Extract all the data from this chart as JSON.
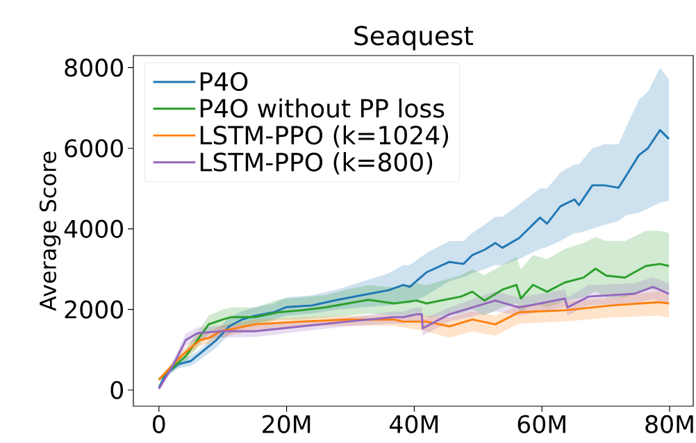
{
  "chart_data": {
    "type": "line",
    "title": "Seaquest",
    "ylabel": "Average Score",
    "xlim": [
      -4,
      83.7
    ],
    "ylim": [
      -400,
      8300
    ],
    "xticks": [
      {
        "value": 0,
        "label": "0"
      },
      {
        "value": 20,
        "label": "20M"
      },
      {
        "value": 40,
        "label": "40M"
      },
      {
        "value": 60,
        "label": "60M"
      },
      {
        "value": 80,
        "label": "80M"
      }
    ],
    "yticks": [
      0,
      2000,
      4000,
      6000,
      8000
    ],
    "grid": false,
    "legend": "top left",
    "series": [
      {
        "name": "P4O",
        "color": "#1f77b4",
        "x": [
          0,
          1,
          3,
          5,
          7,
          9,
          11,
          13,
          15,
          18,
          20,
          24,
          28,
          32,
          36,
          38.3,
          39.3,
          41.9,
          45.5,
          47.7,
          49.1,
          51,
          52.7,
          53.8,
          56.4,
          59.7,
          60.8,
          62.9,
          65.1,
          65.8,
          67.9,
          69.8,
          72,
          73.4,
          75.2,
          76.6,
          78.5,
          79.9
        ],
        "values": [
          60,
          380,
          640,
          720,
          980,
          1240,
          1580,
          1750,
          1840,
          1930,
          2060,
          2100,
          2240,
          2360,
          2480,
          2610,
          2560,
          2920,
          3180,
          3130,
          3350,
          3480,
          3650,
          3530,
          3770,
          4280,
          4130,
          4560,
          4730,
          4590,
          5080,
          5080,
          5020,
          5370,
          5830,
          6000,
          6450,
          6230
        ],
        "upper": [
          100,
          450,
          750,
          850,
          1080,
          1450,
          1800,
          1950,
          2050,
          2150,
          2300,
          2350,
          2500,
          2700,
          2900,
          3100,
          3100,
          3400,
          3700,
          3700,
          3900,
          4100,
          4300,
          4300,
          4600,
          5000,
          5000,
          5400,
          5600,
          5600,
          6000,
          6100,
          6100,
          6600,
          7200,
          7400,
          8000,
          7700
        ],
        "lower": [
          20,
          300,
          540,
          600,
          820,
          1050,
          1380,
          1550,
          1650,
          1750,
          1850,
          1900,
          2000,
          2050,
          2100,
          2150,
          2150,
          2350,
          2700,
          2800,
          2900,
          3000,
          3100,
          3100,
          3250,
          3500,
          3550,
          3700,
          3900,
          3900,
          4000,
          4100,
          4200,
          4350,
          4400,
          4500,
          4650,
          4700
        ]
      },
      {
        "name": "P4O without PP loss",
        "color": "#2ca02c",
        "x": [
          0,
          4.2,
          7.8,
          10,
          11.4,
          15.1,
          18.7,
          22.3,
          26,
          29.6,
          32.8,
          36.8,
          40.4,
          41.9,
          47.3,
          49.1,
          51,
          53.8,
          56,
          56.7,
          58.6,
          60.8,
          63.6,
          66.5,
          68.4,
          70.1,
          73,
          76.3,
          78.5,
          79.9
        ],
        "values": [
          260,
          840,
          1630,
          1750,
          1810,
          1810,
          1930,
          1980,
          2050,
          2150,
          2240,
          2150,
          2220,
          2150,
          2320,
          2440,
          2220,
          2490,
          2610,
          2270,
          2610,
          2440,
          2670,
          2790,
          3010,
          2840,
          2790,
          3080,
          3130,
          3080
        ],
        "upper": [
          300,
          1000,
          1850,
          2000,
          2050,
          2050,
          2250,
          2300,
          2350,
          2500,
          2600,
          2550,
          2650,
          2600,
          2850,
          3000,
          2850,
          3100,
          3300,
          3000,
          3350,
          3250,
          3500,
          3650,
          3800,
          3700,
          3700,
          3950,
          3950,
          3900
        ],
        "lower": [
          220,
          700,
          1400,
          1550,
          1600,
          1600,
          1750,
          1750,
          1800,
          1850,
          1900,
          1850,
          1850,
          1800,
          1900,
          2000,
          1850,
          2050,
          2150,
          1900,
          2150,
          2050,
          2200,
          2300,
          2450,
          2300,
          2300,
          2500,
          2500,
          2450
        ]
      },
      {
        "name": "LSTM-PPO (k=1024)",
        "color": "#ff7f0e",
        "x": [
          0,
          3.5,
          6.4,
          7.8,
          9.7,
          15.1,
          22.3,
          29.6,
          36.8,
          38.3,
          40.4,
          41.9,
          45.5,
          49.1,
          52.7,
          56.4,
          63.6,
          70.9,
          78.2,
          79.9
        ],
        "values": [
          260,
          840,
          1240,
          1290,
          1460,
          1630,
          1700,
          1750,
          1750,
          1700,
          1700,
          1700,
          1580,
          1750,
          1630,
          1930,
          1980,
          2100,
          2180,
          2150
        ],
        "upper": [
          300,
          950,
          1400,
          1450,
          1600,
          1750,
          1800,
          1850,
          1850,
          1800,
          1850,
          1850,
          1800,
          1950,
          1850,
          2100,
          2200,
          2300,
          2450,
          2400
        ],
        "lower": [
          220,
          730,
          1100,
          1150,
          1300,
          1500,
          1580,
          1600,
          1600,
          1550,
          1500,
          1450,
          1300,
          1450,
          1350,
          1650,
          1700,
          1800,
          1850,
          1800
        ]
      },
      {
        "name": "LSTM-PPO (k=800)",
        "color": "#9467bd",
        "x": [
          0,
          2.4,
          4.2,
          6,
          9.7,
          15.1,
          22.3,
          29.6,
          36.8,
          38.3,
          40.4,
          41.2,
          41.3,
          45.5,
          52.7,
          56.4,
          63.6,
          64,
          67.3,
          74.5,
          77.4,
          79.9
        ],
        "values": [
          30,
          670,
          1240,
          1410,
          1460,
          1460,
          1580,
          1700,
          1810,
          1810,
          1880,
          1880,
          1530,
          1880,
          2220,
          2050,
          2270,
          2050,
          2320,
          2390,
          2560,
          2390
        ],
        "upper": [
          60,
          800,
          1400,
          1550,
          1600,
          1600,
          1700,
          1800,
          1950,
          1950,
          2050,
          2050,
          1750,
          2050,
          2450,
          2300,
          2500,
          2300,
          2600,
          2650,
          2800,
          2650
        ],
        "lower": [
          10,
          550,
          1100,
          1250,
          1300,
          1320,
          1450,
          1580,
          1650,
          1650,
          1700,
          1700,
          1350,
          1700,
          1950,
          1850,
          2050,
          1850,
          2100,
          2150,
          2250,
          2150
        ]
      }
    ]
  }
}
